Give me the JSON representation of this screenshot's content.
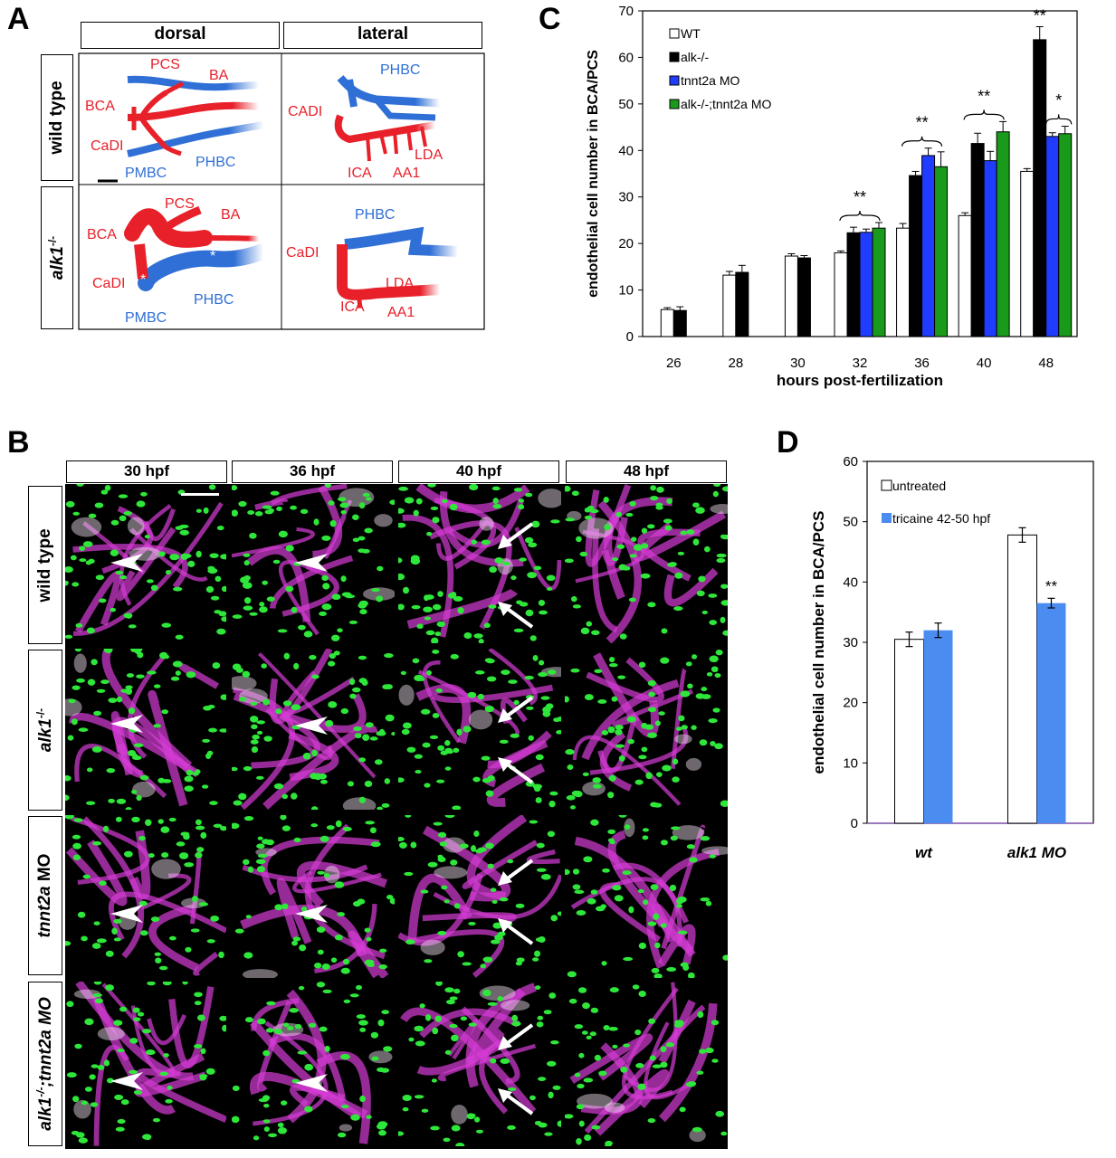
{
  "panels": {
    "a": "A",
    "b": "B",
    "c": "C",
    "d": "D"
  },
  "panel_a": {
    "columns": [
      "dorsal",
      "lateral"
    ],
    "rows": [
      "wild type",
      "alk1"
    ],
    "row_sup": "-/-",
    "labels": {
      "wt_dorsal": [
        "PCS",
        "BA",
        "BCA",
        "CaDI",
        "PMBC",
        "PHBC"
      ],
      "wt_lateral": [
        "PHBC",
        "CADI",
        "LDA",
        "ICA",
        "AA1"
      ],
      "alk_dorsal": [
        "PCS",
        "BA",
        "BCA",
        "CaDI",
        "PMBC",
        "PHBC"
      ],
      "alk_lateral": [
        "PHBC",
        "CaDI",
        "LDA",
        "ICA",
        "AA1"
      ],
      "asterisk": "*"
    },
    "colors": {
      "artery": "#e8202a",
      "vein": "#2f6fd6",
      "label_red": "#e8202a",
      "label_blue": "#2f6fd6"
    }
  },
  "panel_b": {
    "columns": [
      "30 hpf",
      "36 hpf",
      "40 hpf",
      "48 hpf"
    ],
    "rows": [
      {
        "main": "wild type",
        "italic": false,
        "sup": ""
      },
      {
        "main": "alk1",
        "italic": true,
        "sup": "-/-"
      },
      {
        "main": "tnnt2a",
        "italic": true,
        "suffix": " MO",
        "sup": ""
      },
      {
        "main": "alk1",
        "italic": true,
        "sup": "-/-",
        "suffix": ";tnnt2a MO"
      }
    ],
    "colors": {
      "nuclei": "#2fe63a",
      "vessels": "#d63cd6",
      "background": "#000000"
    }
  },
  "chart_data": [
    {
      "type": "bar",
      "title": "",
      "xlabel": "hours post-fertilization",
      "ylabel": "endothelial cell number in BCA/PCS",
      "ylim": [
        0,
        70
      ],
      "yticks": [
        0,
        10,
        20,
        30,
        40,
        50,
        60,
        70
      ],
      "categories": [
        "26",
        "28",
        "30",
        "32",
        "36",
        "40",
        "48"
      ],
      "legend_position": "top-left",
      "series": [
        {
          "name": "WT",
          "color": "#ffffff",
          "values": [
            5.8,
            13.2,
            17.3,
            18.0,
            23.3,
            26.0,
            35.5
          ],
          "errors": [
            0.4,
            0.8,
            0.5,
            0.4,
            1.0,
            0.6,
            0.6
          ]
        },
        {
          "name": "alk-/-",
          "color": "#000000",
          "values": [
            5.6,
            13.8,
            16.9,
            22.3,
            34.6,
            41.5,
            63.8
          ],
          "errors": [
            0.8,
            1.5,
            0.5,
            1.2,
            0.9,
            2.2,
            2.8
          ]
        },
        {
          "name": "tnnt2a MO",
          "color": "#1f3cff",
          "values": [
            null,
            null,
            null,
            22.4,
            38.9,
            37.8,
            43.0
          ],
          "errors": [
            0,
            0,
            0,
            0.7,
            1.6,
            2.0,
            0.8
          ]
        },
        {
          "name": "alk-/-;tnnt2a MO",
          "color": "#1a9a1a",
          "values": [
            null,
            null,
            null,
            23.3,
            36.5,
            44.0,
            43.6
          ],
          "errors": [
            0,
            0,
            0,
            1.2,
            3.2,
            2.2,
            1.6
          ]
        }
      ],
      "annotations": [
        {
          "category": "32",
          "text": "**"
        },
        {
          "category": "36",
          "text": "**"
        },
        {
          "category": "40",
          "text": "**"
        },
        {
          "category": "48",
          "text": "**"
        },
        {
          "category": "48",
          "text": "*"
        }
      ]
    },
    {
      "type": "bar",
      "title": "",
      "xlabel": "",
      "ylabel": "endothelial cell number in BCA/PCS",
      "ylim": [
        0,
        60
      ],
      "yticks": [
        0,
        10,
        20,
        30,
        40,
        50,
        60
      ],
      "categories": [
        "wt",
        "alk1 MO"
      ],
      "legend_position": "top-left",
      "series": [
        {
          "name": "untreated",
          "color": "#ffffff",
          "values": [
            30.5,
            47.8
          ],
          "errors": [
            1.2,
            1.2
          ]
        },
        {
          "name": "tricaine 42-50 hpf",
          "color": "#4a8cf0",
          "values": [
            32.0,
            36.5
          ],
          "errors": [
            1.2,
            0.8
          ]
        }
      ],
      "annotations": [
        {
          "category": "alk1 MO",
          "text": "**"
        }
      ]
    }
  ]
}
